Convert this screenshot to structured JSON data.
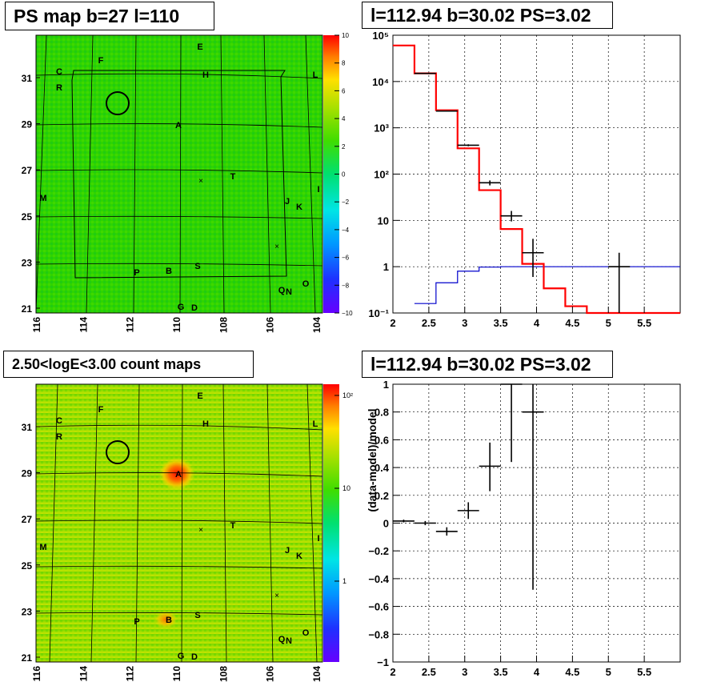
{
  "titles": {
    "ps_map": "PS map b=27 l=110",
    "spectrum": "l=112.94 b=30.02 PS=3.02",
    "count_maps": "2.50<logE<3.00 count maps",
    "residual": "l=112.94 b=30.02 PS=3.02"
  },
  "colors": {
    "data": "#000000",
    "model_total": "#ff0000",
    "model_background": "#0000cc",
    "map_base": "#2ed400",
    "count_base": "#8ee000",
    "hotspot": "#ff2000"
  },
  "sky_maps": {
    "l_ticks": [
      "116",
      "114",
      "112",
      "110",
      "108",
      "106",
      "104"
    ],
    "b_ticks": [
      "31",
      "29",
      "27",
      "25",
      "23",
      "21"
    ],
    "source_labels": [
      "E",
      "F",
      "C",
      "H",
      "L",
      "R",
      "A",
      "T",
      "I",
      "M",
      "J",
      "K",
      "S",
      "P",
      "B",
      "Q",
      "N",
      "O",
      "G",
      "D"
    ],
    "ps_colorbar_ticks": [
      "10",
      "8",
      "6",
      "4",
      "2",
      "0",
      "−2",
      "−4",
      "−6",
      "−8",
      "−10"
    ],
    "count_colorbar_ticks": [
      "10²",
      "10",
      "1"
    ]
  },
  "chart_data": [
    {
      "type": "line",
      "panel": "spectrum",
      "title": "l=112.94 b=30.02 PS=3.02",
      "xlabel": "",
      "ylabel": "",
      "x_scale": "linear",
      "y_scale": "log",
      "xlim": [
        2,
        6
      ],
      "ylim": [
        0.1,
        100000
      ],
      "x_ticks": [
        "2",
        "2.5",
        "3",
        "3.5",
        "4",
        "4.5",
        "5",
        "5.5"
      ],
      "y_ticks": [
        "10⁻¹",
        "1",
        "10",
        "10²",
        "10³",
        "10⁴",
        "10⁵"
      ],
      "grid": true,
      "series": [
        {
          "role": "data",
          "points": [
            {
              "x": 2.45,
              "y": 15000,
              "xerr": 0.15,
              "ylo": 14800,
              "yhi": 15200
            },
            {
              "x": 2.75,
              "y": 2300,
              "xerr": 0.15,
              "ylo": 2250,
              "yhi": 2350
            },
            {
              "x": 3.05,
              "y": 420,
              "xerr": 0.15,
              "ylo": 400,
              "yhi": 440
            },
            {
              "x": 3.35,
              "y": 65,
              "xerr": 0.15,
              "ylo": 57,
              "yhi": 73
            },
            {
              "x": 3.65,
              "y": 12.5,
              "xerr": 0.15,
              "ylo": 9.5,
              "yhi": 16
            },
            {
              "x": 3.95,
              "y": 2,
              "xerr": 0.15,
              "ylo": 0.6,
              "yhi": 4
            },
            {
              "x": 5.15,
              "y": 1,
              "xerr": 0.15,
              "ylo": 0.1,
              "yhi": 2
            }
          ]
        },
        {
          "role": "model_total",
          "edges": [
            2,
            2.3,
            2.6,
            2.9,
            3.2,
            3.5,
            3.8,
            4.1,
            4.4,
            4.7,
            6
          ],
          "values": [
            60000,
            15000,
            2400,
            360,
            45,
            6.5,
            1.15,
            0.34,
            0.14,
            0.1
          ]
        },
        {
          "role": "model_background",
          "edges": [
            2.3,
            2.6,
            2.9,
            3.2,
            3.5,
            3.8,
            4.1,
            6
          ],
          "values": [
            0.16,
            0.45,
            0.8,
            0.98,
            1,
            1,
            1
          ]
        }
      ]
    },
    {
      "type": "scatter",
      "panel": "residual",
      "title": "l=112.94 b=30.02 PS=3.02",
      "xlabel": "",
      "ylabel": "(data-model)/model",
      "xlim": [
        2,
        6
      ],
      "ylim": [
        -1,
        1
      ],
      "x_ticks": [
        "2",
        "2.5",
        "3",
        "3.5",
        "4",
        "4.5",
        "5",
        "5.5"
      ],
      "y_ticks": [
        "−1",
        "−0.8",
        "−0.6",
        "−0.4",
        "−0.2",
        "0",
        "0.2",
        "0.4",
        "0.6",
        "0.8",
        "1"
      ],
      "grid": true,
      "points": [
        {
          "x": 2.15,
          "y": 0.015,
          "xerr": 0.15,
          "ylo": 0.005,
          "yhi": 0.025
        },
        {
          "x": 2.45,
          "y": 0.0,
          "xerr": 0.15,
          "ylo": -0.015,
          "yhi": 0.015
        },
        {
          "x": 2.75,
          "y": -0.06,
          "xerr": 0.15,
          "ylo": -0.09,
          "yhi": -0.03
        },
        {
          "x": 3.05,
          "y": 0.09,
          "xerr": 0.15,
          "ylo": 0.03,
          "yhi": 0.15
        },
        {
          "x": 3.35,
          "y": 0.41,
          "xerr": 0.15,
          "ylo": 0.23,
          "yhi": 0.58
        },
        {
          "x": 3.65,
          "y": 1.0,
          "xerr": 0.15,
          "ylo": 0.44,
          "yhi": 1.0
        },
        {
          "x": 3.95,
          "y": 0.8,
          "xerr": 0.15,
          "ylo": -0.48,
          "yhi": 1.0
        }
      ]
    }
  ]
}
